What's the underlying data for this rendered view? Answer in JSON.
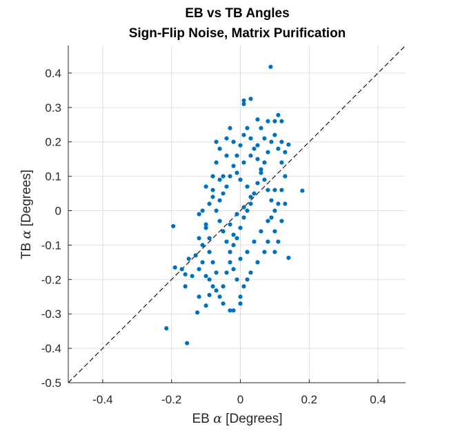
{
  "chart_data": {
    "type": "scatter",
    "title": [
      "EB vs TB Angles",
      "Sign-Flip Noise, Matrix Purification"
    ],
    "xlabel": "EB α [Degrees]",
    "ylabel": "TB α [Degrees]",
    "xlabel_parts": {
      "pre": "EB ",
      "sym": "α",
      "post": " [Degrees]"
    },
    "ylabel_parts": {
      "pre": "TB ",
      "sym": "α",
      "post": " [Degrees]"
    },
    "xlim": [
      -0.5,
      0.48
    ],
    "ylim": [
      -0.5,
      0.48
    ],
    "xticks": [
      -0.4,
      -0.2,
      0,
      0.2,
      0.4
    ],
    "xtick_labels": [
      "-0.4",
      "-0.2",
      "0",
      "0.2",
      "0.4"
    ],
    "yticks": [
      -0.5,
      -0.4,
      -0.3,
      -0.2,
      -0.1,
      0,
      0.1,
      0.2,
      0.3,
      0.4
    ],
    "ytick_labels": [
      "-0.5",
      "-0.4",
      "-0.3",
      "-0.2",
      "-0.1",
      "0",
      "0.1",
      "0.2",
      "0.3",
      "0.4"
    ],
    "grid": true,
    "reference_line": "y = x (dashed)",
    "marker_color": "#0072BD",
    "points": [
      [
        0.088,
        0.418
      ],
      [
        -0.215,
        -0.342
      ],
      [
        -0.155,
        -0.385
      ],
      [
        -0.195,
        -0.045
      ],
      [
        0.18,
        0.058
      ],
      [
        0.14,
        -0.137
      ],
      [
        0.14,
        0.192
      ],
      [
        0.03,
        0.325
      ],
      [
        0.01,
        0.32
      ],
      [
        0.01,
        0.31
      ],
      [
        0.11,
        0.278
      ],
      [
        0.05,
        0.265
      ],
      [
        0.1,
        0.26
      ],
      [
        0.12,
        0.26
      ],
      [
        -0.125,
        -0.296
      ],
      [
        -0.1,
        -0.276
      ],
      [
        -0.12,
        -0.25
      ],
      [
        -0.03,
        -0.29
      ],
      [
        -0.02,
        -0.29
      ],
      [
        -0.05,
        -0.27
      ],
      [
        -0.06,
        -0.25
      ],
      [
        -0.17,
        -0.17
      ],
      [
        -0.19,
        -0.165
      ],
      [
        -0.16,
        -0.185
      ],
      [
        -0.16,
        -0.22
      ],
      [
        -0.09,
        -0.245
      ],
      [
        -0.07,
        -0.232
      ],
      [
        0.0,
        -0.27
      ],
      [
        -0.14,
        -0.19
      ],
      [
        -0.15,
        -0.14
      ],
      [
        -0.13,
        -0.13
      ],
      [
        -0.11,
        -0.1
      ],
      [
        -0.12,
        -0.08
      ],
      [
        -0.1,
        -0.05
      ],
      [
        -0.11,
        0.0
      ],
      [
        -0.12,
        -0.01
      ],
      [
        -0.09,
        0.02
      ],
      [
        -0.08,
        0.06
      ],
      [
        -0.08,
        0.1
      ],
      [
        -0.07,
        0.14
      ],
      [
        -0.05,
        0.1
      ],
      [
        -0.04,
        0.16
      ],
      [
        -0.06,
        0.09
      ],
      [
        -0.1,
        0.07
      ],
      [
        -0.09,
        -0.12
      ],
      [
        -0.08,
        -0.15
      ],
      [
        -0.07,
        -0.18
      ],
      [
        -0.09,
        -0.2
      ],
      [
        -0.05,
        -0.22
      ],
      [
        -0.04,
        -0.18
      ],
      [
        -0.03,
        -0.15
      ],
      [
        -0.02,
        -0.1
      ],
      [
        -0.01,
        -0.08
      ],
      [
        0.0,
        -0.05
      ],
      [
        0.01,
        -0.02
      ],
      [
        0.02,
        0.0
      ],
      [
        0.03,
        0.02
      ],
      [
        0.04,
        0.05
      ],
      [
        0.05,
        0.08
      ],
      [
        0.06,
        0.11
      ],
      [
        0.07,
        0.14
      ],
      [
        0.08,
        0.17
      ],
      [
        0.09,
        0.2
      ],
      [
        0.1,
        0.22
      ],
      [
        0.11,
        0.18
      ],
      [
        0.12,
        0.14
      ],
      [
        0.13,
        0.1
      ],
      [
        0.1,
        0.06
      ],
      [
        0.11,
        0.02
      ],
      [
        0.09,
        -0.02
      ],
      [
        0.1,
        -0.06
      ],
      [
        0.08,
        -0.09
      ],
      [
        0.07,
        -0.12
      ],
      [
        0.05,
        -0.15
      ],
      [
        0.03,
        -0.18
      ],
      [
        0.02,
        -0.2
      ],
      [
        0.01,
        -0.22
      ],
      [
        0.0,
        -0.25
      ],
      [
        -0.01,
        -0.2
      ],
      [
        -0.02,
        -0.17
      ],
      [
        -0.03,
        -0.12
      ],
      [
        -0.04,
        -0.09
      ],
      [
        -0.05,
        -0.06
      ],
      [
        -0.06,
        -0.03
      ],
      [
        -0.07,
        0.0
      ],
      [
        -0.06,
        0.03
      ],
      [
        -0.05,
        0.05
      ],
      [
        -0.04,
        0.07
      ],
      [
        -0.03,
        0.1
      ],
      [
        -0.02,
        0.13
      ],
      [
        -0.01,
        0.16
      ],
      [
        0.0,
        0.19
      ],
      [
        0.01,
        0.22
      ],
      [
        0.02,
        0.24
      ],
      [
        0.03,
        0.21
      ],
      [
        0.04,
        0.18
      ],
      [
        0.05,
        0.15
      ],
      [
        0.06,
        0.12
      ],
      [
        0.07,
        0.09
      ],
      [
        0.08,
        0.06
      ],
      [
        0.09,
        0.03
      ],
      [
        0.1,
        0.0
      ],
      [
        0.08,
        -0.03
      ],
      [
        0.06,
        -0.06
      ],
      [
        0.04,
        -0.09
      ],
      [
        0.02,
        -0.12
      ],
      [
        0.0,
        -0.14
      ],
      [
        -0.02,
        -0.07
      ],
      [
        -0.03,
        -0.04
      ],
      [
        -0.01,
        -0.01
      ],
      [
        0.01,
        0.01
      ],
      [
        0.03,
        0.04
      ],
      [
        0.02,
        0.07
      ],
      [
        0.0,
        0.09
      ],
      [
        -0.01,
        0.11
      ],
      [
        0.01,
        0.14
      ],
      [
        0.03,
        0.16
      ],
      [
        0.05,
        0.19
      ],
      [
        0.07,
        0.21
      ],
      [
        0.06,
        0.24
      ],
      [
        0.08,
        0.26
      ],
      [
        -0.03,
        0.24
      ],
      [
        -0.02,
        0.2
      ],
      [
        -0.04,
        0.21
      ],
      [
        -0.06,
        0.18
      ],
      [
        -0.07,
        0.2
      ],
      [
        0.12,
        0.2
      ],
      [
        0.13,
        0.17
      ],
      [
        0.12,
        0.06
      ],
      [
        0.13,
        0.02
      ],
      [
        0.12,
        -0.03
      ],
      [
        0.11,
        -0.09
      ],
      [
        0.1,
        -0.12
      ],
      [
        -0.11,
        -0.15
      ],
      [
        -0.12,
        -0.17
      ],
      [
        -0.1,
        -0.19
      ],
      [
        -0.08,
        -0.22
      ],
      [
        -0.09,
        -0.08
      ],
      [
        -0.1,
        -0.04
      ],
      [
        -0.08,
        0.04
      ]
    ]
  }
}
